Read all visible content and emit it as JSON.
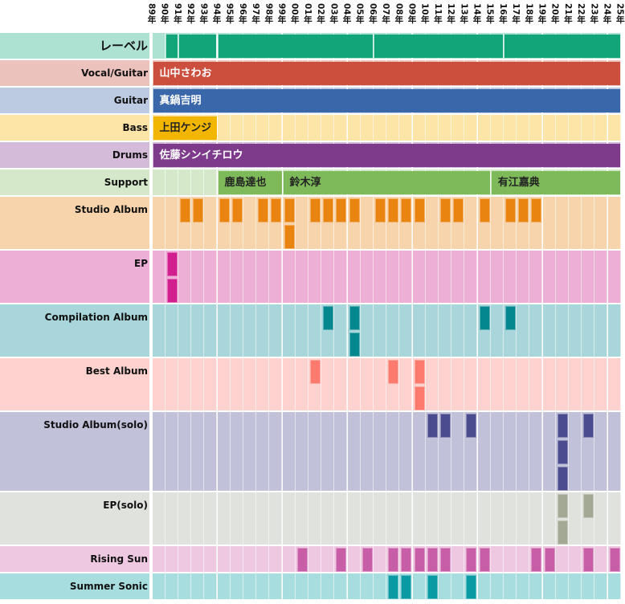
{
  "chart_data": {
    "type": "timeline",
    "title": "",
    "years": [
      "89年",
      "90年",
      "91年",
      "92年",
      "93年",
      "94年",
      "95年",
      "96年",
      "97年",
      "98年",
      "99年",
      "00年",
      "01年",
      "02年",
      "03年",
      "04年",
      "05年",
      "06年",
      "07年",
      "08年",
      "09年",
      "10年",
      "11年",
      "12年",
      "13年",
      "14年",
      "15年",
      "16年",
      "17年",
      "18年",
      "19年",
      "20年",
      "21年",
      "22年",
      "23年",
      "24年",
      "25年"
    ],
    "rows": [
      {
        "label": "レーベル",
        "bg": "#ade2d3",
        "color": "#13a57a",
        "label_size": "large",
        "type": "spans",
        "lines": 1,
        "spans": [
          {
            "start": "90年",
            "end": "91年",
            "text": ""
          },
          {
            "start": "91年",
            "end": "94年",
            "text": ""
          },
          {
            "start": "94年",
            "end": "06年",
            "text": ""
          },
          {
            "start": "06年",
            "end": "16年",
            "text": ""
          },
          {
            "start": "16年",
            "end": "25年",
            "text": ""
          }
        ]
      },
      {
        "label": "Vocal/Guitar",
        "bg": "#ecc2bd",
        "color": "#cc4f3e",
        "type": "spans",
        "lines": 1,
        "spans": [
          {
            "start": "89年",
            "end": "25年",
            "text": "山中さわお"
          }
        ]
      },
      {
        "label": "Guitar",
        "bg": "#bccbe2",
        "color": "#3a67aa",
        "type": "spans",
        "lines": 1,
        "spans": [
          {
            "start": "89年",
            "end": "25年",
            "text": "真鍋吉明"
          }
        ]
      },
      {
        "label": "Bass",
        "bg": "#fce5a6",
        "color": "#f2b500",
        "dark_text": true,
        "type": "spans",
        "lines": 1,
        "spans": [
          {
            "start": "89年",
            "end": "94年",
            "text": "上田ケンジ"
          }
        ]
      },
      {
        "label": "Drums",
        "bg": "#d4bbd9",
        "color": "#7e3a8b",
        "type": "spans",
        "lines": 1,
        "spans": [
          {
            "start": "89年",
            "end": "25年",
            "text": "佐藤シンイチロウ"
          }
        ]
      },
      {
        "label": "Support",
        "bg": "#d5e8ca",
        "color": "#7fba5a",
        "dark_text": true,
        "type": "spans",
        "lines": 1,
        "spans": [
          {
            "start": "94年",
            "end": "99年",
            "text": "鹿島達也"
          },
          {
            "start": "99年",
            "end": "15年",
            "text": "鈴木淳"
          },
          {
            "start": "15年",
            "end": "25年",
            "text": "有江嘉典"
          }
        ]
      },
      {
        "label": "Studio Album",
        "bg": "#f8d4ac",
        "color": "#e8840f",
        "type": "events",
        "lines": 2,
        "events": {
          "91年": 1,
          "92年": 1,
          "94年": 1,
          "95年": 1,
          "97年": 1,
          "98年": 1,
          "99年": 2,
          "01年": 1,
          "02年": 1,
          "03年": 1,
          "04年": 1,
          "06年": 1,
          "07年": 1,
          "08年": 1,
          "09年": 1,
          "11年": 1,
          "12年": 1,
          "14年": 1,
          "16年": 1,
          "17年": 1,
          "18年": 1
        }
      },
      {
        "label": "EP",
        "bg": "#eeafd7",
        "color": "#d21f8f",
        "type": "events",
        "lines": 2,
        "events": {
          "90年": 2
        }
      },
      {
        "label": "Compilation Album",
        "bg": "#a8d6da",
        "color": "#05878f",
        "type": "events",
        "lines": 2,
        "events": {
          "02年": 1,
          "04年": 2,
          "14年": 1,
          "16年": 1
        }
      },
      {
        "label": "Best Album",
        "bg": "#fed2ce",
        "color": "#fd7b6e",
        "type": "events",
        "lines": 2,
        "events": {
          "01年": 1,
          "07年": 1,
          "09年": 2
        }
      },
      {
        "label": "Studio Album(solo)",
        "bg": "#c2c1da",
        "color": "#4b4b8f",
        "type": "events",
        "lines": 3,
        "events": {
          "10年": 1,
          "11年": 1,
          "13年": 1,
          "20年": 3,
          "22年": 1
        }
      },
      {
        "label": "EP(solo)",
        "bg": "#e0e2dd",
        "color": "#a4a995",
        "type": "events",
        "lines": 2,
        "events": {
          "20年": 2,
          "22年": 1
        }
      },
      {
        "label": "Rising Sun",
        "bg": "#eec8e0",
        "color": "#c95ea8",
        "type": "events",
        "lines": 1,
        "events": {
          "00年": 1,
          "03年": 1,
          "05年": 1,
          "07年": 1,
          "08年": 1,
          "09年": 1,
          "10年": 1,
          "11年": 1,
          "13年": 1,
          "14年": 1,
          "18年": 1,
          "19年": 1,
          "22年": 1,
          "24年": 1
        }
      },
      {
        "label": "Summer Sonic",
        "bg": "#a8dde0",
        "color": "#0a9aa3",
        "type": "events",
        "lines": 1,
        "events": {
          "07年": 1,
          "08年": 1,
          "10年": 1,
          "13年": 1
        }
      }
    ]
  }
}
